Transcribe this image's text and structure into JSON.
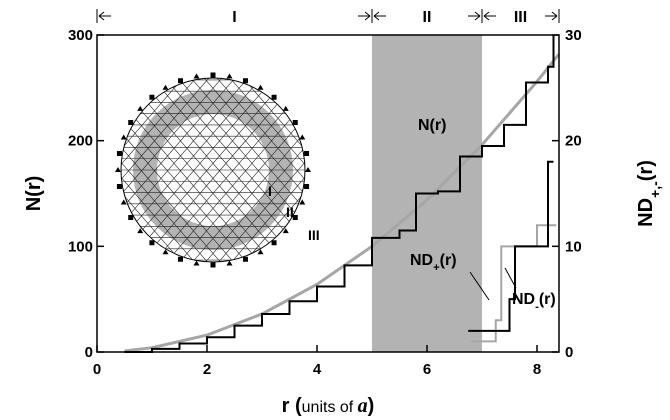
{
  "chart_data": {
    "type": "line",
    "xlabel_parts": [
      "r (",
      "units of ",
      "a",
      ")"
    ],
    "ylabel_parts": [
      "N(r)"
    ],
    "y2label_parts": [
      "ND",
      "+,-",
      "(r)"
    ],
    "xlim": [
      0,
      8.4
    ],
    "xticks": [
      0,
      2,
      4,
      6,
      8
    ],
    "ylim": [
      0,
      300
    ],
    "yticks": [
      0,
      100,
      200,
      300
    ],
    "y2lim": [
      0,
      30
    ],
    "y2ticks": [
      0,
      10,
      20,
      30
    ],
    "shade": [
      5,
      7
    ],
    "shade_color": "#b3b3b3",
    "regions": [
      {
        "label": "I",
        "range": [
          0,
          5
        ]
      },
      {
        "label": "II",
        "range": [
          5,
          7
        ]
      },
      {
        "label": "III",
        "range": [
          7,
          8.4
        ]
      }
    ],
    "series": [
      {
        "color": "#a6a6a6",
        "step": false,
        "axis": "y",
        "x": [
          0.5,
          1,
          2,
          3,
          4,
          5,
          6,
          7,
          8,
          8.4
        ],
        "values": [
          1,
          4,
          16,
          36,
          64,
          100,
          144,
          196,
          256,
          282
        ]
      },
      {
        "color": "#000000",
        "step": true,
        "axis": "y",
        "x": [
          0.5,
          1,
          1.5,
          2,
          2.5,
          3,
          3.5,
          4,
          4.5,
          5,
          5.5,
          5.8,
          6.2,
          6.6,
          7,
          7.4,
          7.8,
          8.2,
          8.3
        ],
        "values": [
          0,
          3,
          8,
          14,
          25,
          36,
          48,
          62,
          82,
          108,
          115,
          150,
          152,
          185,
          195,
          215,
          255,
          270,
          300
        ]
      },
      {
        "color": "#a6a6a6",
        "step": true,
        "axis": "y2",
        "x": [
          6.8,
          7.25,
          7.35,
          8.0,
          8.35
        ],
        "values": [
          1,
          3,
          10,
          12,
          12
        ]
      },
      {
        "color": "#000000",
        "step": true,
        "axis": "y2",
        "x": [
          6.75,
          7.5,
          7.6,
          8.2,
          8.3
        ],
        "values": [
          2,
          5,
          10,
          18,
          18
        ]
      }
    ],
    "annotations": [
      [
        "N(r)"
      ],
      [
        "ND",
        "+",
        "(r)"
      ],
      [
        "ND",
        "-",
        "(r)"
      ]
    ],
    "inset_labels": [
      "I",
      "II",
      "III"
    ]
  }
}
